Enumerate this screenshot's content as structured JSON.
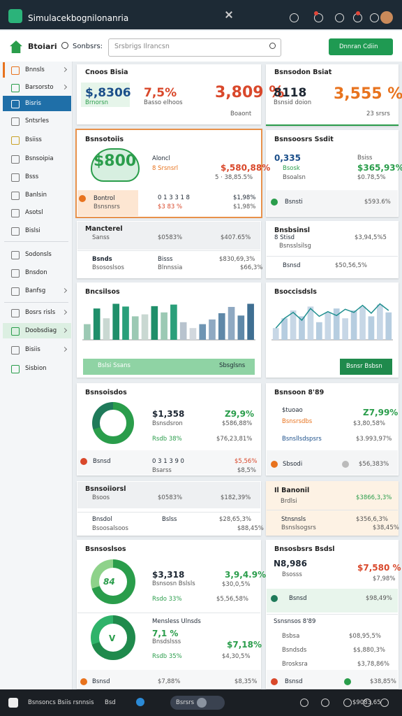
{
  "window": {
    "title": "Simulacekbognilonanria"
  },
  "toolbar": {
    "brand": "Btoiari",
    "search_label": "Sonbsrs:",
    "search_placeholder": "Srsbrigs Ilrancsn",
    "button": "Dnnran Cdiin"
  },
  "sidebar": {
    "items": [
      "Bnnsls",
      "Barsorsto",
      "Bisris",
      "Sntsrles",
      "Bsiiss",
      "Bsnsoipia",
      "Bsss",
      "Banlsin",
      "Asotsl",
      "Bislsi",
      "Sodonsls",
      "Bnsdon",
      "Banfsg",
      "Bosrs risls",
      "Doobsdiag",
      "Bisiis",
      "Sisbion"
    ],
    "active": 2,
    "highlight": 14
  },
  "cards": [
    {
      "title": "Cnoos Bisia",
      "texts": [
        "$,8306",
        "Brnorsn",
        "7,5%",
        "Basso elhoos",
        "3,809 %",
        "Boaont"
      ]
    },
    {
      "title": "Bsnsodon Bsiat",
      "texts": [
        "8118",
        "Bsnsid doion",
        "3,555 %",
        "23 srsrs"
      ]
    },
    {
      "title": "Bsnsotoiis",
      "texts": [
        "$800",
        "Aloncl",
        "8 Srsnsrl",
        "$,580,88%",
        "5 · 38,85.5%",
        "Bontrol",
        "Bsnsnsrs",
        "0 1 3 3 1 8",
        "$3 83 %",
        "$1,98%",
        "$1,98%"
      ]
    },
    {
      "title": "Bsnsoosrs Ssdit",
      "texts": [
        "0,335",
        "Bsosk",
        "Bsoalsn",
        "Bsiss",
        "$365,93%",
        "$0.78,5%",
        "Bsnsti",
        "$593.6%"
      ]
    },
    {
      "title": "Mancterel",
      "texts": [
        "Sanss",
        "$0583%",
        "$407.65%",
        "Bsnds",
        "Bsososlsos",
        "Bisss",
        "Blnnssia",
        "$830,69,3%",
        "$66,3%"
      ]
    },
    {
      "title": "Bnsbsinsl",
      "texts": [
        "8 Stisd",
        "Bsnsslsilsg",
        "$3,94,5%5",
        "Bsnsd",
        "$50,56,5%"
      ]
    },
    {
      "title": "Bncsilsos",
      "texts": [
        "Bslsi Ssans",
        "Sbsglsns"
      ],
      "chart": {
        "type": "bar",
        "ylim": [
          0,
          100
        ],
        "values": [
          40,
          80,
          55,
          92,
          85,
          60,
          65,
          86,
          70,
          90,
          45,
          30,
          40,
          52,
          68,
          84,
          62,
          92
        ],
        "colors": [
          "#9cc9b4",
          "#1f8f6a",
          "#c9d8d2",
          "#1f8f6a",
          "#2a9f7a",
          "#9cc9b4",
          "#c9d8d2",
          "#1f8f6a",
          "#9cc9b4",
          "#2a9f7a",
          "#b8c3ce",
          "#d2d8de",
          "#6f95b3",
          "#8fa9c2",
          "#5f88a8",
          "#8fa9c2",
          "#5f88a8",
          "#3f6f92"
        ]
      }
    },
    {
      "title": "Bsoccisdsls",
      "texts": [
        "Bsnsr Bsbsn"
      ],
      "chart": {
        "type": "bar",
        "ylim": [
          0,
          100
        ],
        "values": [
          30,
          55,
          75,
          60,
          85,
          45,
          70,
          80,
          55,
          75,
          85,
          60,
          90,
          70
        ],
        "colors": [
          "#c7d7e6",
          "#b6cde0",
          "#c7d7e6",
          "#b6cde0",
          "#c7d7e6",
          "#b6cde0",
          "#c7d7e6",
          "#b6cde0",
          "#c7d7e6",
          "#b6cde0",
          "#c7d7e6",
          "#b6cde0",
          "#c7d7e6",
          "#b6cde0"
        ],
        "line": [
          30,
          55,
          70,
          50,
          80,
          60,
          72,
          62,
          78,
          70,
          88,
          68,
          92,
          75
        ],
        "line_color": "#1f8f8f"
      }
    },
    {
      "title": "Bsnsoisdos",
      "texts": [
        "$1,358",
        "Bsnsdsron",
        "Z9,9%",
        "$586,88%",
        "Rsdb 38%",
        "$76,23,81%",
        "Bsnsd",
        "0 3 1 3 9 0",
        "Bsarss",
        "$5,56%",
        "$8,5%"
      ]
    },
    {
      "title": "Bsnsoon 8'89",
      "texts": [
        "$tuoao",
        "Bsnsrsdbs",
        "Z7,99%",
        "$3,80,58%",
        "Bsnsllsdspsrs",
        "$3.993,97%",
        "Sbsodi",
        "$56,383%"
      ]
    },
    {
      "title": "Bsnsoiiorsl",
      "texts": [
        "Bsoos",
        "$0583%",
        "$182,39%",
        "Bnsdol",
        "Bsoosalsoos",
        "Bslss",
        "$28,65,3%",
        "$88,45%"
      ]
    },
    {
      "title": "Il Banonil",
      "texts": [
        "Brdlsi",
        "$3866,3,3%",
        "Stnsnsls",
        "Bsnslsogsrs",
        "$356,6,3%",
        "$38,45%"
      ]
    },
    {
      "title": "Bsnsoslsos",
      "texts": [
        "84",
        "$3,318",
        "Bsnsosn Bslsls",
        "Rsdo 33%",
        "3,9,4.9%",
        "$30,0,5%",
        "$5,56,58%",
        "V",
        "Mensless Ulnsds",
        "7,1 %",
        "Bnsdslsss",
        "Rsdb 35%",
        "$7,18%",
        "$4,30,5%",
        "Bsnsd",
        "$7,88%",
        "$8,35%"
      ]
    },
    {
      "title": "Bnsosbsrs Bsdsl",
      "texts": [
        "N8,986",
        "Bsosss",
        "$7,580 %",
        "$7,98%",
        "Bsnsd",
        "$98,49%",
        "Ssnsnsos 8'89",
        "Bsbsa",
        "$08,95,5%",
        "Bsndsds",
        "$$,880,3%",
        "Brosksra",
        "$3,78,86%",
        "Bsnsd",
        "$38,85%"
      ]
    }
  ],
  "footer": {
    "app": "Bsnsoncs Bsiis rsnnsis",
    "tab": "Bsd",
    "pill": "Bsrsrs",
    "amount": "$9083,65"
  }
}
